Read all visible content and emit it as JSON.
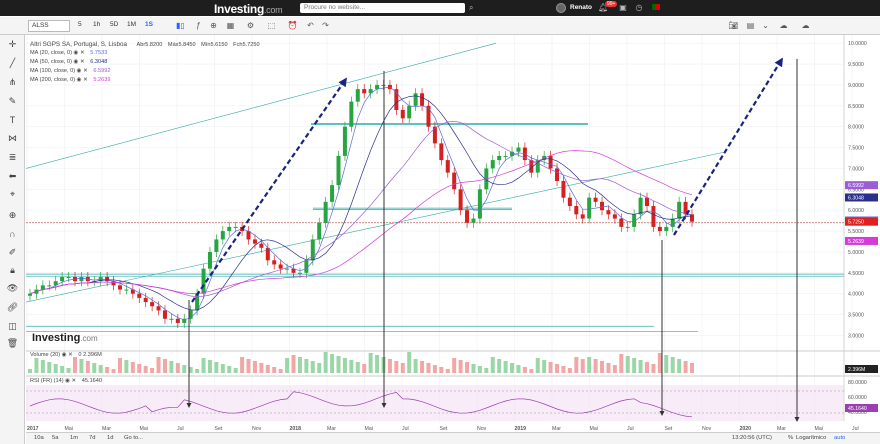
{
  "topbar": {
    "logo": "Investing",
    "logo_suffix": ".com",
    "search_placeholder": "Procure no website...",
    "username": "Renato",
    "notif_count": "99+"
  },
  "toolbar": {
    "symbol": "ALSS",
    "timeframes": [
      "5",
      "1h",
      "5D",
      "1M",
      "1S"
    ],
    "active_timeframe": "1S"
  },
  "main_legend": {
    "title": "Altri SGPS SA, Portugal, S, Lisboa",
    "ohlc": {
      "open_label": "Abr",
      "open": "5.8200",
      "high_label": "Máx",
      "high": "5.8450",
      "low_label": "Mín",
      "low": "5.6150",
      "close_label": "Fch",
      "close": "5.7250"
    },
    "mas": [
      {
        "label": "MA (20, close, 0)",
        "value": "5.7533",
        "color": "#5b6cd6"
      },
      {
        "label": "MA (50, close, 0)",
        "value": "6.3048",
        "color": "#2a2f8c"
      },
      {
        "label": "MA (100, close, 0)",
        "value": "6.5992",
        "color": "#9b5cd6"
      },
      {
        "label": "MA (200, close, 0)",
        "value": "5.2639",
        "color": "#d43cd6"
      }
    ]
  },
  "volume_legend": {
    "label": "Volume (20)",
    "value": "0  2.396M",
    "last": "2.396M"
  },
  "rsi_legend": {
    "label": "RSI (FR) (14)",
    "value": "45.1640",
    "levels": [
      "80.0000",
      "60.0000",
      "40.0000"
    ],
    "last": "45.1640"
  },
  "price_axis": [
    "10.0000",
    "9.5000",
    "9.0000",
    "8.5000",
    "8.0000",
    "7.5000",
    "7.0000",
    "6.5000",
    "6.0000",
    "5.5000",
    "5.0000",
    "4.5000",
    "4.0000",
    "3.5000",
    "3.0000"
  ],
  "price_badges": [
    {
      "value": "6.5992",
      "color": "#9b5cd6"
    },
    {
      "value": "6.3048",
      "color": "#2a2f8c"
    },
    {
      "value": "5.7533",
      "color": "#5b6cd6"
    },
    {
      "value": "5.7250",
      "color": "#e02020"
    },
    {
      "value": "5.2639",
      "color": "#d43cd6"
    }
  ],
  "watermark": "Investing",
  "watermark_suffix": ".com",
  "time_axis": [
    "2017",
    "Mai",
    "Mar",
    "Mai",
    "Jul",
    "Set",
    "Nov",
    "2018",
    "Mar",
    "Mai",
    "Jul",
    "Set",
    "Nov",
    "2019",
    "Mar",
    "Mai",
    "Jul",
    "Set",
    "Nov",
    "2020",
    "Mar",
    "Mai",
    "Jul"
  ],
  "bottom": {
    "periods": [
      "10a",
      "5a",
      "1m",
      "7d",
      "1d",
      "Go to..."
    ],
    "time": "13:20:56 (UTC)",
    "pct": "%",
    "log": "Logarítmico",
    "auto": "auto"
  },
  "chart_data": {
    "type": "candlestick",
    "title": "Altri SGPS SA, Portugal, S, Lisboa",
    "ylim": [
      2.7,
      10.1
    ],
    "x_range": [
      "2017-01",
      "2020-08"
    ],
    "close_series_approx": [
      4.0,
      4.1,
      4.2,
      4.2,
      4.3,
      4.4,
      4.4,
      4.3,
      4.4,
      4.3,
      4.3,
      4.4,
      4.3,
      4.2,
      4.1,
      4.1,
      4.0,
      3.9,
      3.8,
      3.7,
      3.6,
      3.4,
      3.4,
      3.3,
      3.4,
      3.6,
      4.0,
      4.6,
      5.0,
      5.3,
      5.5,
      5.6,
      5.6,
      5.5,
      5.3,
      5.2,
      5.1,
      4.8,
      4.7,
      4.6,
      4.6,
      4.5,
      4.5,
      4.8,
      5.3,
      5.7,
      6.2,
      6.6,
      7.3,
      8.0,
      8.6,
      8.9,
      8.8,
      8.9,
      9.0,
      9.0,
      8.9,
      8.4,
      8.2,
      8.5,
      8.8,
      8.5,
      8.0,
      7.6,
      7.2,
      6.9,
      6.5,
      6.0,
      5.7,
      5.8,
      6.5,
      7.0,
      7.2,
      7.3,
      7.3,
      7.4,
      7.5,
      7.2,
      6.9,
      7.2,
      7.3,
      7.0,
      6.7,
      6.3,
      6.1,
      5.9,
      5.8,
      6.3,
      6.2,
      6.0,
      5.9,
      5.8,
      5.6,
      5.6,
      5.9,
      6.3,
      6.1,
      5.6,
      5.5,
      5.6,
      5.8,
      6.2,
      5.9,
      5.725
    ]
  }
}
